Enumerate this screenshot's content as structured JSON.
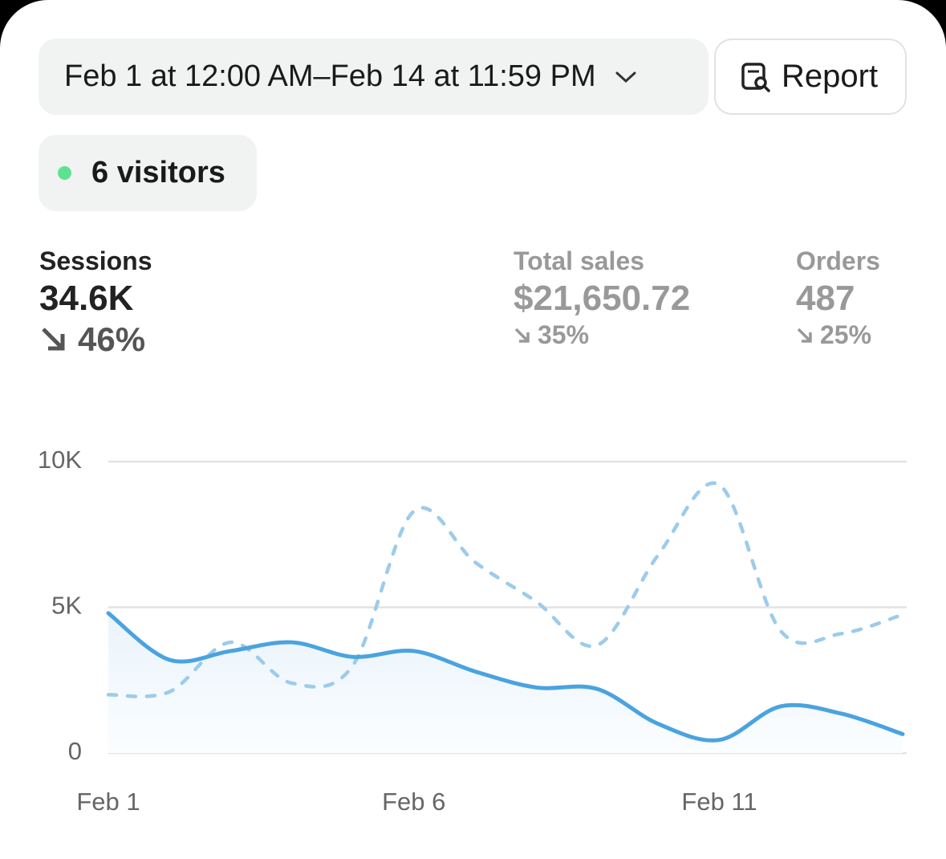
{
  "header": {
    "date_range": "Feb 1 at 12:00 AM–Feb 14 at 11:59 PM",
    "report": "Report"
  },
  "visitors": "6 visitors",
  "metrics": [
    {
      "label": "Sessions",
      "value": "34.6K",
      "change": "46%"
    },
    {
      "label": "Total sales",
      "value": "$21,650.72",
      "change": "35%"
    },
    {
      "label": "Orders",
      "value": "487",
      "change": "25%"
    }
  ],
  "chart_data": {
    "type": "line",
    "categories": [
      "Feb 1",
      null,
      null,
      null,
      null,
      "Feb 6",
      null,
      null,
      null,
      null,
      "Feb 11",
      null,
      null,
      null
    ],
    "series": [
      {
        "color": "#4aa3e0",
        "style": "solid",
        "fill": true,
        "values": [
          4800,
          3200,
          3500,
          3800,
          3300,
          3500,
          2800,
          2250,
          2200,
          1000,
          450,
          1600,
          1350,
          650
        ]
      },
      {
        "color": "#9ccbec",
        "style": "dashed",
        "fill": false,
        "values": [
          2000,
          2100,
          3800,
          2400,
          3000,
          8300,
          6550,
          5200,
          3700,
          6800,
          9200,
          4200,
          4100,
          4750
        ]
      }
    ],
    "ylim": [
      0,
      10000
    ],
    "yticks": [
      0,
      {
        "value": 5000,
        "label": "5K"
      },
      {
        "value": 10000,
        "label": "10K"
      }
    ],
    "grid": true
  }
}
